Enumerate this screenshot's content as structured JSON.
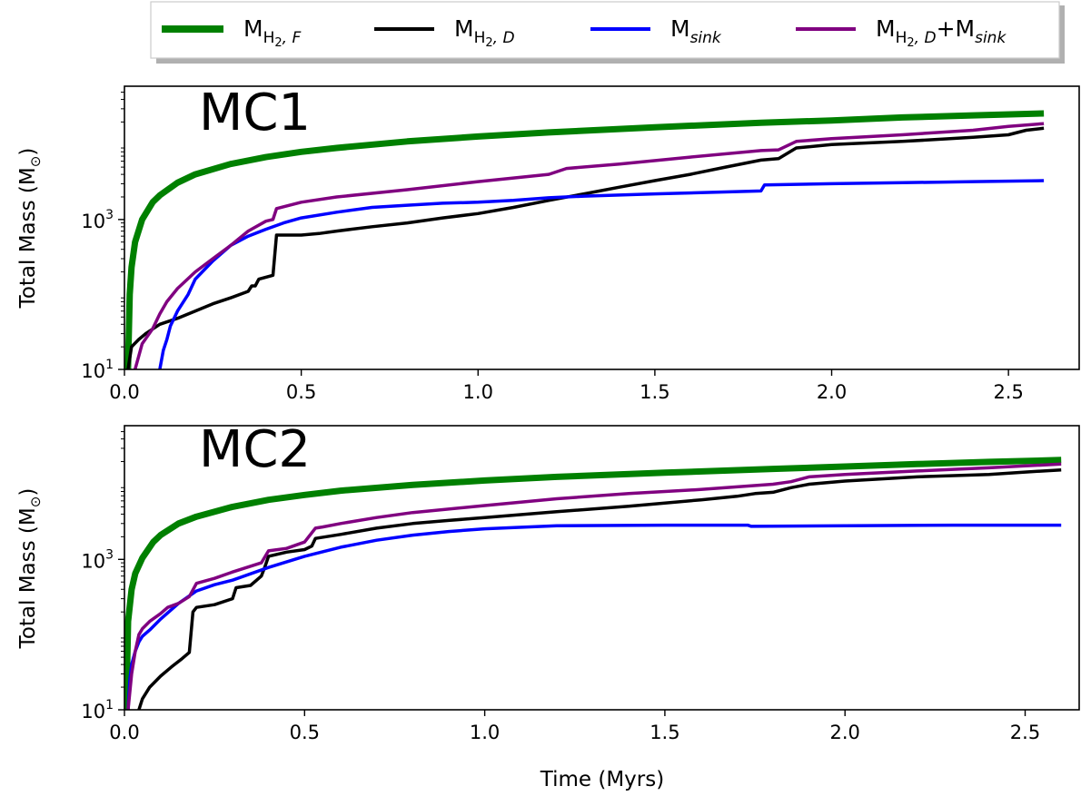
{
  "legend": {
    "placement": "top-center",
    "entries": [
      {
        "key": "mh2f",
        "base": "M",
        "sub": "H",
        "subsub": "2",
        "subtail": ", F",
        "color": "#008000"
      },
      {
        "key": "mh2d",
        "base": "M",
        "sub": "H",
        "subsub": "2",
        "subtail": ", D",
        "color": "#000000"
      },
      {
        "key": "msink",
        "base": "M",
        "sub": "sink",
        "color": "#0000ff"
      },
      {
        "key": "msum",
        "base": "M",
        "sub": "H",
        "subsub": "2",
        "subtail": ", D",
        "plus": "+M",
        "sub2": "sink",
        "color": "#800080"
      }
    ]
  },
  "xlabel": "Time (Myrs)",
  "chart_data": [
    {
      "type": "line",
      "title": "MC1",
      "ylabel": "Total Mass (M",
      "ylabel_sun": "⊙",
      "ylabel_close": ")",
      "yscale": "log",
      "xlim": [
        0.0,
        2.7
      ],
      "ylim": [
        10,
        60000
      ],
      "xticks": [
        0.0,
        0.5,
        1.0,
        1.5,
        2.0,
        2.5
      ],
      "xtick_labels": [
        "0.0",
        "0.5",
        "1.0",
        "1.5",
        "2.0",
        "2.5"
      ],
      "yticks": [
        10,
        1000
      ],
      "ytick_labels": [
        {
          "base": "10",
          "exp": "1"
        },
        {
          "base": "10",
          "exp": "3"
        }
      ],
      "series": [
        {
          "name": "MH2,F",
          "color": "#008000",
          "x": [
            0.01,
            0.015,
            0.02,
            0.03,
            0.05,
            0.08,
            0.1,
            0.15,
            0.2,
            0.3,
            0.4,
            0.5,
            0.6,
            0.8,
            1.0,
            1.2,
            1.5,
            1.8,
            2.0,
            2.2,
            2.4,
            2.6
          ],
          "y": [
            10,
            100,
            230,
            500,
            1000,
            1700,
            2100,
            3100,
            4000,
            5500,
            6800,
            8000,
            9000,
            11000,
            12800,
            14500,
            17000,
            19500,
            21000,
            23000,
            24500,
            26000
          ]
        },
        {
          "name": "MH2,D",
          "color": "#000000",
          "x": [
            0.01,
            0.02,
            0.04,
            0.06,
            0.1,
            0.15,
            0.2,
            0.25,
            0.3,
            0.35,
            0.36,
            0.37,
            0.38,
            0.42,
            0.43,
            0.44,
            0.5,
            0.55,
            0.6,
            0.7,
            0.8,
            0.9,
            1.0,
            1.1,
            1.2,
            1.3,
            1.4,
            1.5,
            1.6,
            1.7,
            1.8,
            1.85,
            1.9,
            2.0,
            2.2,
            2.4,
            2.5,
            2.55,
            2.6
          ],
          "y": [
            10,
            20,
            25,
            30,
            40,
            48,
            60,
            75,
            90,
            110,
            130,
            130,
            160,
            180,
            620,
            620,
            620,
            650,
            700,
            800,
            900,
            1050,
            1200,
            1450,
            1800,
            2200,
            2700,
            3300,
            4000,
            5000,
            6200,
            6500,
            9000,
            10000,
            11000,
            12500,
            13500,
            15500,
            16500
          ]
        },
        {
          "name": "Msink",
          "color": "#0000ff",
          "x": [
            0.1,
            0.11,
            0.12,
            0.13,
            0.15,
            0.18,
            0.2,
            0.25,
            0.3,
            0.35,
            0.4,
            0.45,
            0.5,
            0.6,
            0.7,
            0.8,
            0.9,
            1.0,
            1.1,
            1.2,
            1.3,
            1.5,
            1.8,
            1.81,
            2.0,
            2.2,
            2.4,
            2.6
          ],
          "y": [
            10,
            18,
            25,
            38,
            60,
            100,
            160,
            280,
            450,
            600,
            740,
            900,
            1050,
            1250,
            1450,
            1550,
            1650,
            1700,
            1800,
            1950,
            2050,
            2200,
            2400,
            2900,
            3000,
            3100,
            3200,
            3300
          ]
        },
        {
          "name": "MH2,D+Msink",
          "color": "#800080",
          "x": [
            0.03,
            0.05,
            0.08,
            0.1,
            0.12,
            0.15,
            0.2,
            0.25,
            0.3,
            0.35,
            0.4,
            0.42,
            0.43,
            0.5,
            0.6,
            0.8,
            1.0,
            1.2,
            1.25,
            1.4,
            1.6,
            1.8,
            1.85,
            1.9,
            2.0,
            2.2,
            2.4,
            2.5,
            2.6
          ],
          "y": [
            10,
            22,
            35,
            55,
            80,
            120,
            200,
            300,
            450,
            700,
            950,
            1000,
            1400,
            1700,
            2000,
            2500,
            3200,
            4000,
            4800,
            5500,
            6800,
            8300,
            8500,
            11000,
            12000,
            13500,
            15500,
            17500,
            19000
          ]
        }
      ]
    },
    {
      "type": "line",
      "title": "MC2",
      "ylabel": "Total Mass (M",
      "ylabel_sun": "⊙",
      "ylabel_close": ")",
      "yscale": "log",
      "xlim": [
        0.0,
        2.65
      ],
      "ylim": [
        10,
        60000
      ],
      "xticks": [
        0.0,
        0.5,
        1.0,
        1.5,
        2.0,
        2.5
      ],
      "xtick_labels": [
        "0.0",
        "0.5",
        "1.0",
        "1.5",
        "2.0",
        "2.5"
      ],
      "yticks": [
        10,
        1000
      ],
      "ytick_labels": [
        {
          "base": "10",
          "exp": "1"
        },
        {
          "base": "10",
          "exp": "3"
        }
      ],
      "series": [
        {
          "name": "MH2,F",
          "color": "#008000",
          "x": [
            0.005,
            0.01,
            0.02,
            0.03,
            0.05,
            0.08,
            0.1,
            0.15,
            0.2,
            0.3,
            0.4,
            0.5,
            0.6,
            0.8,
            1.0,
            1.2,
            1.5,
            1.8,
            2.0,
            2.2,
            2.4,
            2.6
          ],
          "y": [
            10,
            150,
            400,
            650,
            1050,
            1700,
            2100,
            3000,
            3700,
            5000,
            6200,
            7200,
            8200,
            9800,
            11200,
            12500,
            14200,
            16000,
            17200,
            18500,
            19800,
            21000
          ]
        },
        {
          "name": "MH2,D",
          "color": "#000000",
          "x": [
            0.04,
            0.05,
            0.07,
            0.1,
            0.13,
            0.16,
            0.18,
            0.19,
            0.2,
            0.25,
            0.3,
            0.31,
            0.35,
            0.38,
            0.39,
            0.4,
            0.45,
            0.5,
            0.52,
            0.53,
            0.6,
            0.7,
            0.8,
            0.9,
            1.0,
            1.2,
            1.4,
            1.6,
            1.7,
            1.75,
            1.8,
            1.85,
            1.9,
            2.0,
            2.2,
            2.4,
            2.5,
            2.6
          ],
          "y": [
            10,
            14,
            20,
            28,
            37,
            48,
            58,
            200,
            230,
            250,
            300,
            420,
            450,
            600,
            800,
            1100,
            1250,
            1350,
            1500,
            1900,
            2150,
            2600,
            3000,
            3300,
            3600,
            4300,
            5100,
            6200,
            6900,
            7500,
            7800,
            9000,
            10000,
            11000,
            12500,
            13500,
            14500,
            15500
          ]
        },
        {
          "name": "Msink",
          "color": "#0000ff",
          "x": [
            0.01,
            0.015,
            0.02,
            0.03,
            0.04,
            0.05,
            0.07,
            0.1,
            0.15,
            0.2,
            0.25,
            0.3,
            0.4,
            0.5,
            0.6,
            0.7,
            0.8,
            0.9,
            1.0,
            1.2,
            1.5,
            1.73,
            1.74,
            2.0,
            2.3,
            2.6
          ],
          "y": [
            10,
            25,
            40,
            60,
            80,
            95,
            115,
            160,
            260,
            380,
            460,
            530,
            780,
            1100,
            1450,
            1800,
            2100,
            2350,
            2550,
            2800,
            2850,
            2850,
            2750,
            2800,
            2850,
            2850
          ]
        },
        {
          "name": "MH2,D+Msink",
          "color": "#800080",
          "x": [
            0.01,
            0.02,
            0.03,
            0.04,
            0.05,
            0.07,
            0.1,
            0.12,
            0.15,
            0.18,
            0.2,
            0.25,
            0.3,
            0.38,
            0.4,
            0.45,
            0.5,
            0.53,
            0.55,
            0.6,
            0.7,
            0.8,
            1.0,
            1.2,
            1.4,
            1.6,
            1.8,
            1.85,
            1.9,
            2.0,
            2.2,
            2.4,
            2.5,
            2.6
          ],
          "y": [
            10,
            30,
            60,
            100,
            120,
            150,
            190,
            230,
            260,
            320,
            480,
            560,
            680,
            900,
            1300,
            1400,
            1700,
            2600,
            2700,
            3000,
            3600,
            4200,
            5200,
            6400,
            7500,
            8500,
            10000,
            10800,
            12500,
            13500,
            15000,
            16500,
            17500,
            18500
          ]
        }
      ]
    }
  ]
}
